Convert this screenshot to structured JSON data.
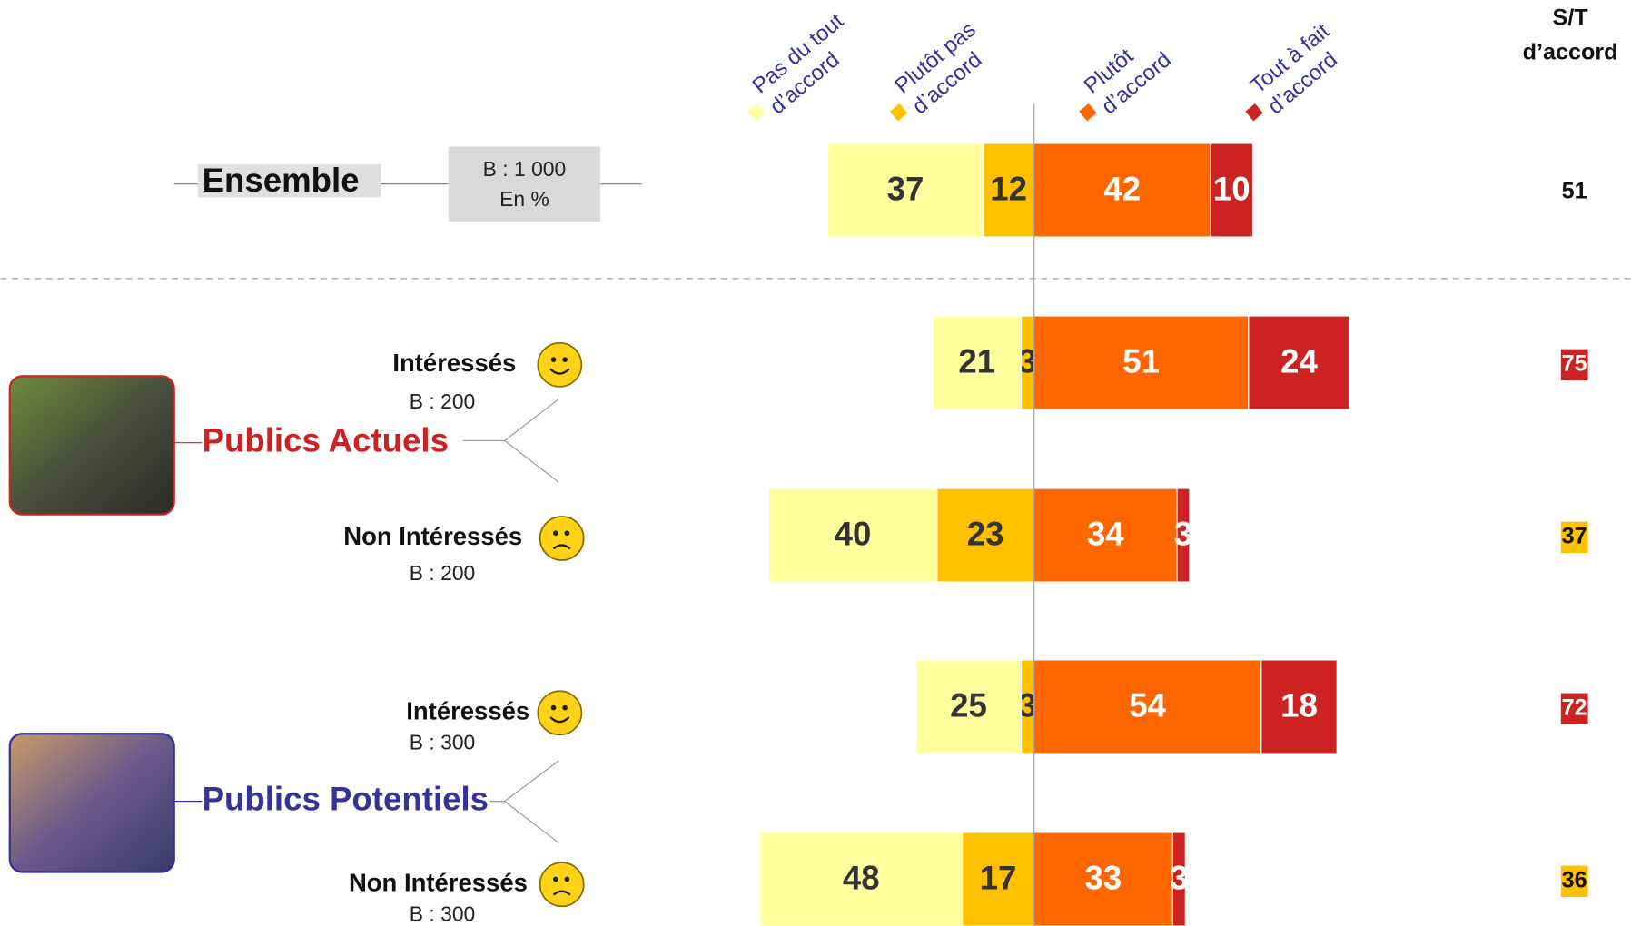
{
  "chart_data": {
    "type": "diverging_bar",
    "categories": [
      "Ensemble",
      "Intéressés",
      "Non Intéressés",
      "Intéressés",
      "Non Intéressés"
    ],
    "bases": [
      "B : 1 000",
      "B : 200",
      "B : 200",
      "B : 300",
      "B : 300"
    ],
    "unit_note": "En %",
    "groups": [
      {
        "name": "Publics Actuels",
        "color": "#cc2222"
      },
      {
        "name": "Publics Potentiels",
        "color": "#333399"
      }
    ],
    "series": [
      {
        "name": "Pas du tout\nd’accord",
        "color": "#ffff9e",
        "side": "left",
        "values": [
          37,
          21,
          40,
          25,
          48
        ]
      },
      {
        "name": "Plutôt pas\nd’accord",
        "color": "#ffc000",
        "side": "left",
        "values": [
          12,
          3,
          23,
          3,
          17
        ]
      },
      {
        "name": "Plutôt\nd’accord",
        "color": "#ff6600",
        "side": "right",
        "values": [
          42,
          51,
          34,
          54,
          33
        ]
      },
      {
        "name": "Tout à fait\nd’accord",
        "color": "#cc2222",
        "side": "right",
        "values": [
          10,
          24,
          3,
          18,
          3
        ]
      }
    ],
    "xlim": [
      -70,
      80
    ],
    "total_title": "S/T\nd’accord",
    "totals": [
      51,
      75,
      37,
      72,
      36
    ],
    "total_colors": [
      null,
      "#cc2222",
      "#ffc000",
      "#cc2222",
      "#ffc000"
    ]
  }
}
